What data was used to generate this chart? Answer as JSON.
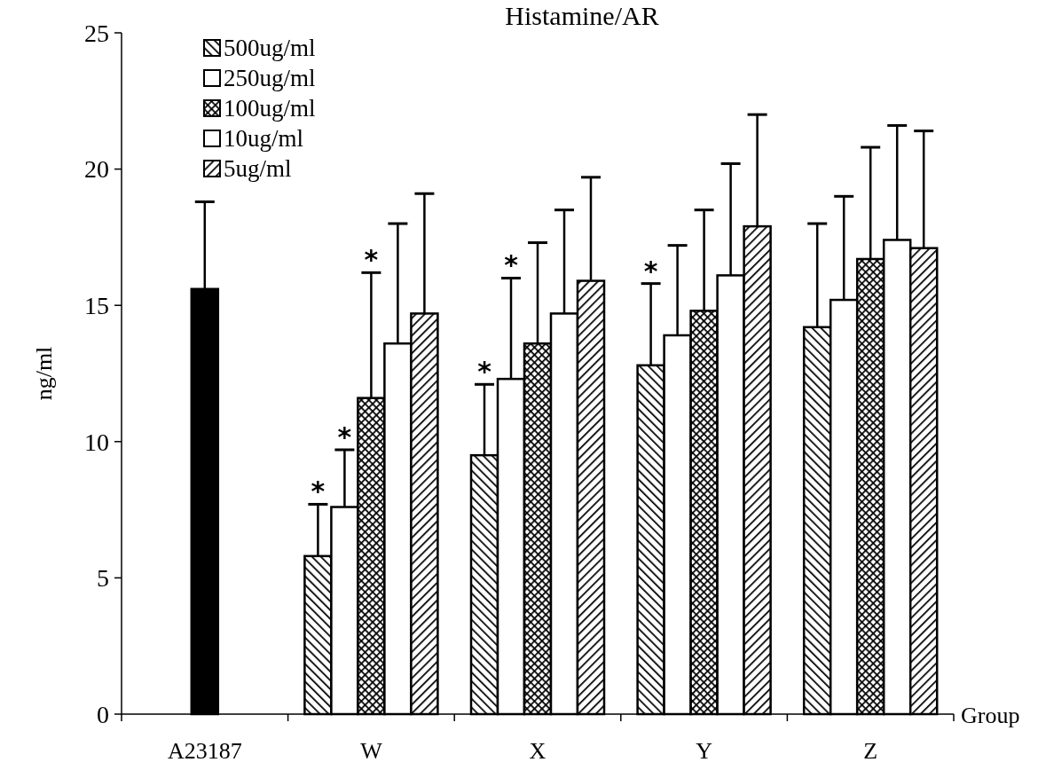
{
  "chart_data": {
    "type": "bar",
    "title": "Histamine/AR",
    "xlabel": "Group",
    "ylabel": "ng/ml",
    "categories": [
      "A23187",
      "W",
      "X",
      "Y",
      "Z"
    ],
    "ylim": [
      0,
      25
    ],
    "yticks": [
      0,
      5,
      10,
      15,
      20,
      25
    ],
    "grid": false,
    "legend": "top left",
    "series": [
      {
        "color": "#000000",
        "values": [
          15.6,
          null,
          null,
          null,
          null
        ],
        "errors": [
          [
            15.6,
            18.8
          ],
          null,
          null,
          null,
          null
        ]
      },
      {
        "name": "500ug/ml",
        "color": "#000000",
        "values": [
          null,
          5.8,
          9.5,
          12.8,
          14.2
        ],
        "errors": [
          null,
          [
            5.8,
            7.7
          ],
          [
            9.5,
            12.1
          ],
          [
            12.8,
            15.8
          ],
          [
            14.2,
            18.0
          ]
        ]
      },
      {
        "name": "250ug/ml",
        "color": "#ffffff",
        "values": [
          null,
          7.6,
          12.3,
          13.9,
          15.2
        ],
        "errors": [
          null,
          [
            7.6,
            9.7
          ],
          [
            12.3,
            16.0
          ],
          [
            13.9,
            17.2
          ],
          [
            15.2,
            19.0
          ]
        ]
      },
      {
        "name": "100ug/ml",
        "color": "#000000",
        "values": [
          null,
          11.6,
          13.6,
          14.8,
          16.7
        ],
        "errors": [
          null,
          [
            11.6,
            16.2
          ],
          [
            13.6,
            17.3
          ],
          [
            14.8,
            18.5
          ],
          [
            16.7,
            20.8
          ]
        ]
      },
      {
        "name": "10ug/ml",
        "color": "#ffffff",
        "values": [
          null,
          13.6,
          14.7,
          16.1,
          17.4
        ],
        "errors": [
          null,
          [
            13.6,
            18.0
          ],
          [
            14.7,
            18.5
          ],
          [
            16.1,
            20.2
          ],
          [
            17.4,
            21.6
          ]
        ]
      },
      {
        "name": "5ug/ml",
        "color": "#000000",
        "values": [
          null,
          14.7,
          15.9,
          17.9,
          17.1
        ],
        "errors": [
          null,
          [
            14.7,
            19.1
          ],
          [
            15.9,
            19.7
          ],
          [
            17.9,
            22.0
          ],
          [
            17.1,
            21.4
          ]
        ]
      }
    ],
    "annotations": [
      "*",
      "*",
      "*",
      {
        "text": "*",
        "x": "W",
        "y": 16.2
      },
      {
        "text": "*",
        "x": "X",
        "y": 16.0
      },
      {
        "text": "*",
        "x": "Y",
        "y": 15.8
      }
    ]
  }
}
